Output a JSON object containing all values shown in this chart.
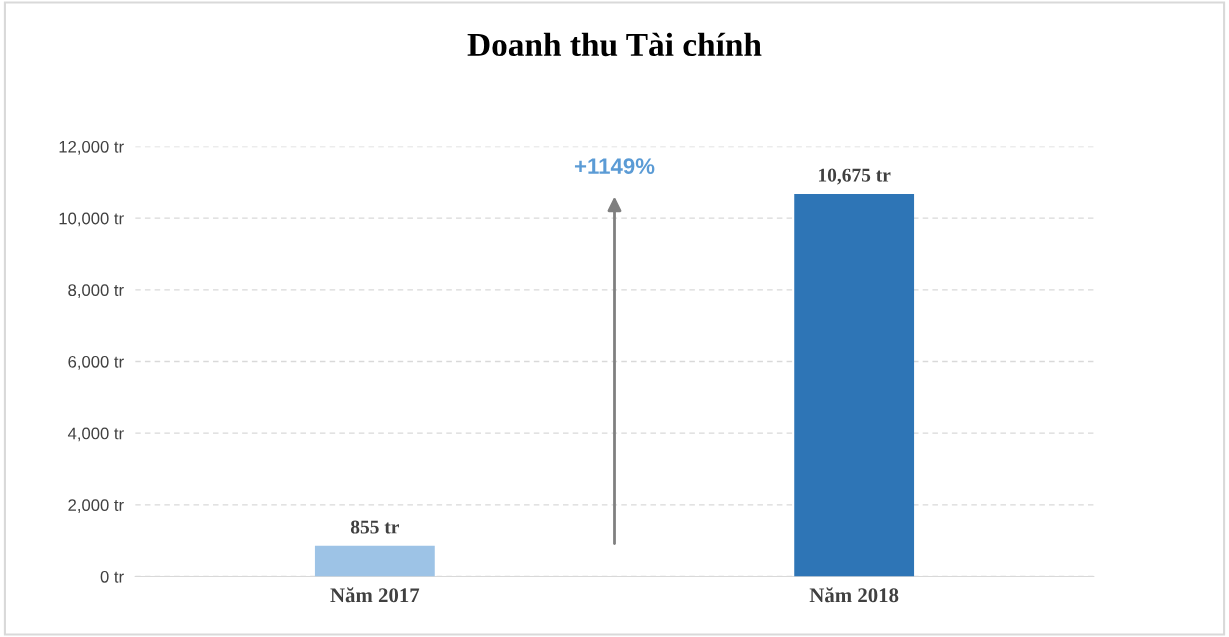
{
  "chart_data": {
    "type": "bar",
    "title": "Doanh thu Tài chính",
    "categories": [
      "Năm 2017",
      "Năm 2018"
    ],
    "values": [
      855,
      10675
    ],
    "colors": [
      "#9dc3e6",
      "#2e75b6"
    ],
    "value_labels": [
      "855 tr",
      "10,675 tr"
    ],
    "ylim": [
      0,
      12000
    ],
    "yticks": [
      {
        "value": 0,
        "label": "0 tr"
      },
      {
        "value": 2000,
        "label": "2,000 tr"
      },
      {
        "value": 4000,
        "label": "4,000 tr"
      },
      {
        "value": 6000,
        "label": "6,000 tr"
      },
      {
        "value": 8000,
        "label": "8,000 tr"
      },
      {
        "value": 10000,
        "label": "10,000 tr"
      },
      {
        "value": 12000,
        "label": "12,000 tr"
      }
    ],
    "grid": "y",
    "annotations": [
      "+1149%"
    ]
  }
}
